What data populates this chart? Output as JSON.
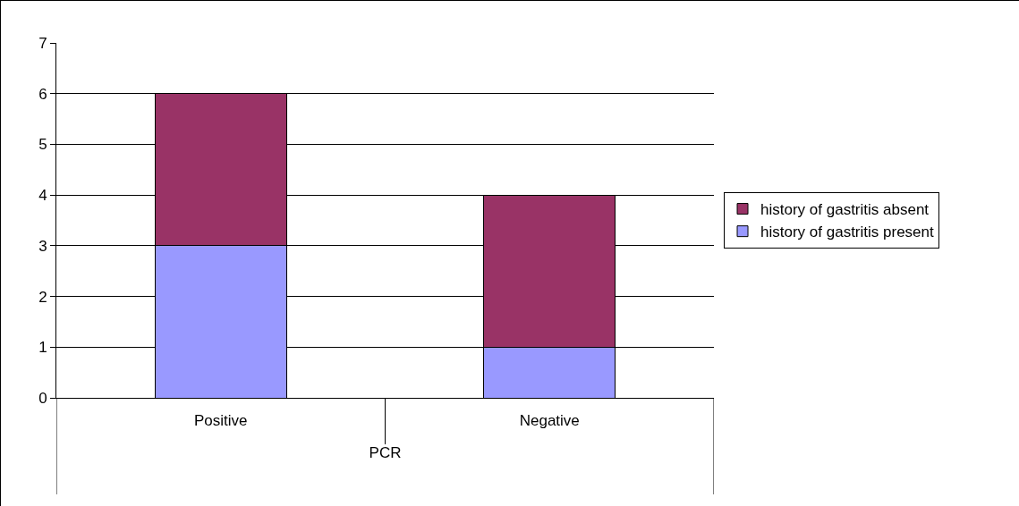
{
  "chart_data": {
    "type": "bar",
    "stacked": true,
    "xlabel": "PCR",
    "categories": [
      "Positive",
      "Negative"
    ],
    "series": [
      {
        "name": "history of gastritis present",
        "color": "#9999ff",
        "values": [
          3,
          1
        ]
      },
      {
        "name": "history of gastritis absent",
        "color": "#993366",
        "values": [
          3,
          3
        ]
      }
    ],
    "ylim": [
      0,
      7
    ],
    "yticks": [
      0,
      1,
      2,
      3,
      4,
      5,
      6,
      7
    ],
    "grid": "y",
    "legend": "right"
  }
}
